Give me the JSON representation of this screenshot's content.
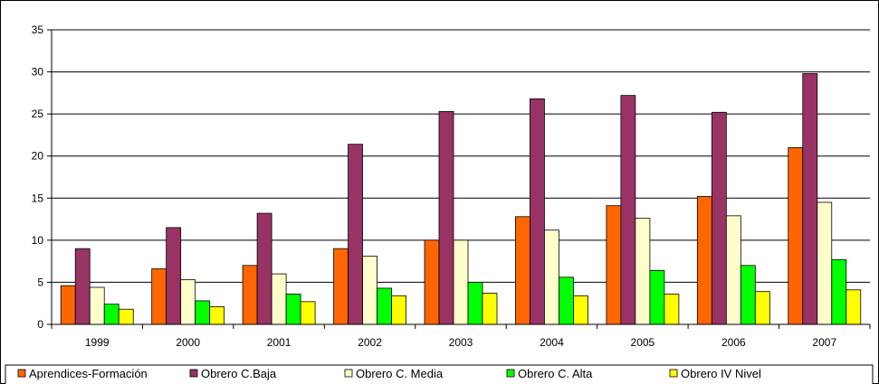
{
  "chart_data": {
    "type": "bar",
    "title": "",
    "xlabel": "",
    "ylabel": "",
    "ylim": [
      0,
      35
    ],
    "yticks": [
      0,
      5,
      10,
      15,
      20,
      25,
      30,
      35
    ],
    "grid": true,
    "legend_position": "bottom",
    "categories": [
      "1999",
      "2000",
      "2001",
      "2002",
      "2003",
      "2004",
      "2005",
      "2006",
      "2007"
    ],
    "series": [
      {
        "name": "Aprendices-Formación",
        "color": "#ff6600",
        "values": [
          4.6,
          6.6,
          7.0,
          9.0,
          10.0,
          12.8,
          14.1,
          15.2,
          21.0
        ]
      },
      {
        "name": "Obrero C.Baja",
        "color": "#993366",
        "values": [
          9.0,
          11.5,
          13.2,
          21.4,
          25.3,
          26.8,
          27.2,
          25.2,
          29.8
        ]
      },
      {
        "name": "Obrero C. Media",
        "color": "#ffffcc",
        "values": [
          4.4,
          5.3,
          6.0,
          8.1,
          10.0,
          11.2,
          12.6,
          12.9,
          14.5
        ]
      },
      {
        "name": "Obrero C. Alta",
        "color": "#00ff00",
        "values": [
          2.4,
          2.8,
          3.6,
          4.3,
          5.0,
          5.6,
          6.4,
          7.0,
          7.7
        ]
      },
      {
        "name": "Obrero IV Nivel",
        "color": "#ffff00",
        "values": [
          1.8,
          2.1,
          2.7,
          3.4,
          3.7,
          3.4,
          3.6,
          3.9,
          4.1
        ]
      }
    ]
  }
}
